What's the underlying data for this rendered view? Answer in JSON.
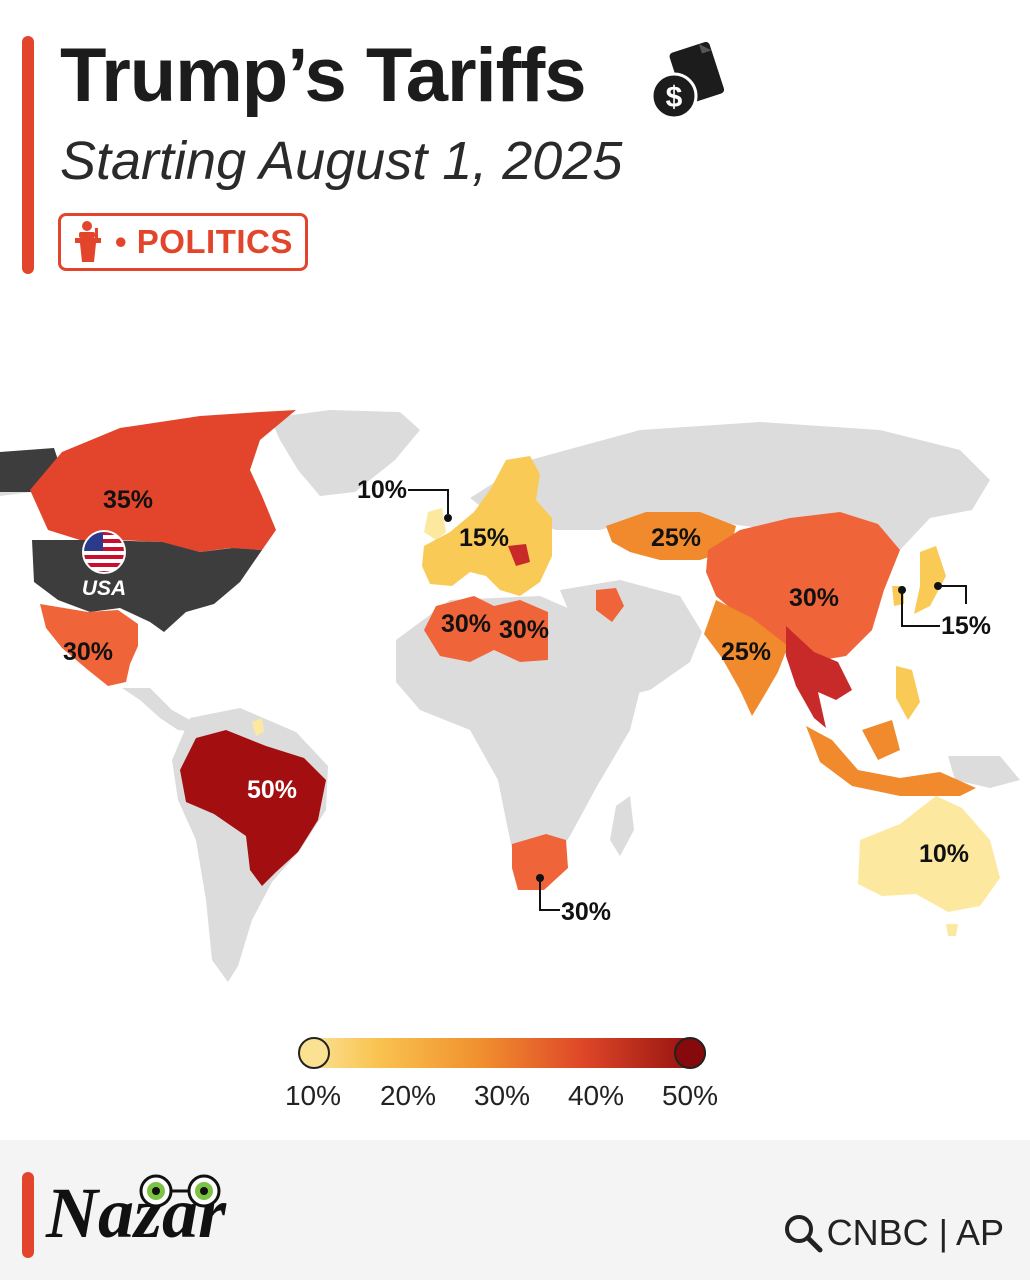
{
  "header": {
    "title": "Trump’s Tariffs",
    "subtitle": "Starting August 1, 2025",
    "badge_label": "• POLITICS",
    "title_icon": "money-document-icon",
    "badge_icon": "podium-speaker-icon"
  },
  "map": {
    "usa_label": "USA",
    "usa_flag": "us-flag-icon",
    "colors": {
      "land": "#dcdcdc",
      "usa": "#3d3d3d",
      "rate_10": "#fde8a0",
      "rate_15": "#f9ca55",
      "rate_25": "#f08a2c",
      "rate_30": "#f0643a",
      "rate_35": "#e2452c",
      "rate_40": "#c82a2a",
      "rate_50": "#a30f10"
    },
    "labels": {
      "canada": "35%",
      "mexico": "30%",
      "brazil": "50%",
      "uk": "10%",
      "eu": "15%",
      "algeria": "30%",
      "libya": "30%",
      "kazakhstan": "25%",
      "china": "30%",
      "india": "25%",
      "japan_korea": "15%",
      "south_africa": "30%",
      "australia": "10%"
    }
  },
  "legend": {
    "ticks": [
      "10%",
      "20%",
      "30%",
      "40%",
      "50%"
    ]
  },
  "footer": {
    "brand": "Nazar",
    "sources": "CNBC | AP"
  }
}
